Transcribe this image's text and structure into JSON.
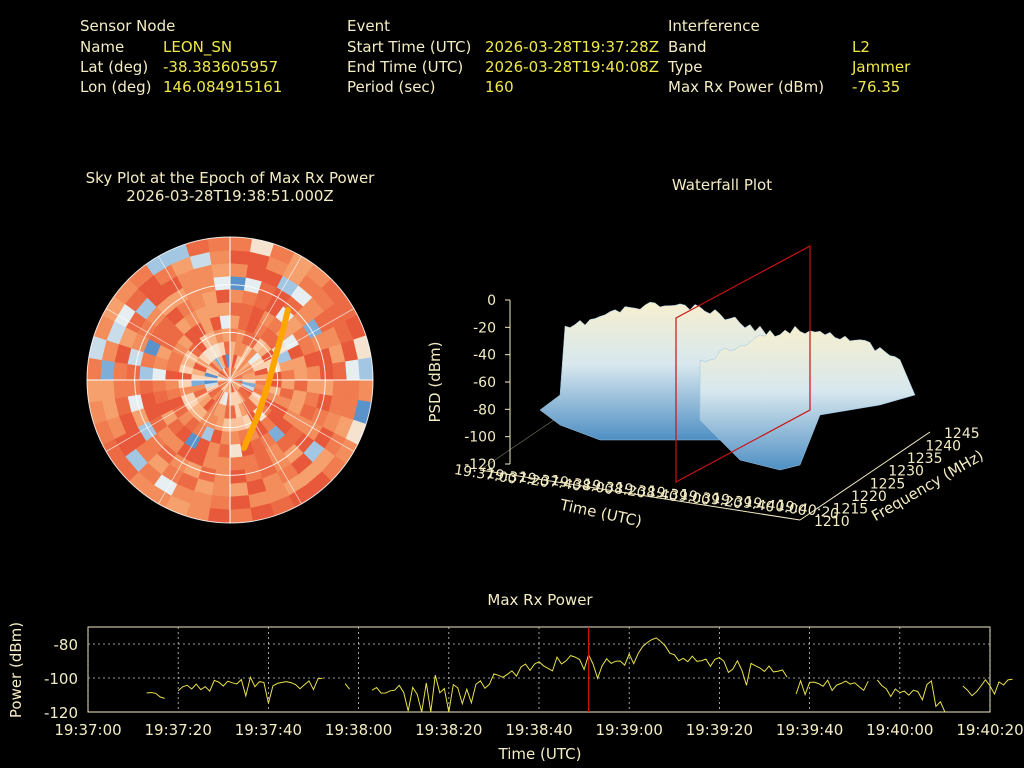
{
  "header": {
    "sensor": {
      "title": "Sensor Node",
      "rows": [
        {
          "label": "Name",
          "value": "LEON_SN"
        },
        {
          "label": "Lat (deg)",
          "value": "-38.383605957"
        },
        {
          "label": "Lon (deg)",
          "value": "146.084915161"
        }
      ]
    },
    "event": {
      "title": "Event",
      "rows": [
        {
          "label": "Start Time (UTC)",
          "value": "2026-03-28T19:37:28Z"
        },
        {
          "label": "End Time (UTC)",
          "value": "2026-03-28T19:40:08Z"
        },
        {
          "label": "Period (sec)",
          "value": "160"
        }
      ]
    },
    "interference": {
      "title": "Interference",
      "rows": [
        {
          "label": "Band",
          "value": "L2"
        },
        {
          "label": "Type",
          "value": "Jammer"
        },
        {
          "label": "Max Rx Power (dBm)",
          "value": "-76.35"
        }
      ]
    }
  },
  "colors": {
    "label": "#f4ecc4",
    "value": "#f0e84a",
    "line": "#e8e04a",
    "marker": "#cc1111",
    "track": "#ffa500"
  },
  "chart_data": [
    {
      "type": "heatmap",
      "title": "Sky Plot at the Epoch of Max Rx Power",
      "subtitle": "2026-03-28T19:38:51.000Z",
      "projection": "polar",
      "grid": true
    },
    {
      "type": "area",
      "title": "Waterfall Plot",
      "zlabel": "PSD (dBm)",
      "xlabel": "Time (UTC)",
      "ylabel": "Frequency (MHz)",
      "z_ticks": [
        "0",
        "-20",
        "-40",
        "-60",
        "-80",
        "-100",
        "-120"
      ],
      "time_ticks": [
        "19:37:00",
        "19:37:20",
        "19:37:40",
        "19:38:00",
        "19:38:20",
        "19:38:40",
        "19:39:00",
        "19:39:20",
        "19:39:40",
        "19:40:00",
        "19:40:20"
      ],
      "freq_ticks": [
        "1210",
        "1215",
        "1220",
        "1225",
        "1230",
        "1235",
        "1240",
        "1245"
      ],
      "marker_time": "19:38:51"
    },
    {
      "type": "line",
      "title": "Max Rx Power",
      "xlabel": "Time (UTC)",
      "ylabel": "Power (dBm)",
      "x_ticks": [
        "19:37:00",
        "19:37:20",
        "19:37:40",
        "19:38:00",
        "19:38:20",
        "19:38:40",
        "19:39:00",
        "19:39:20",
        "19:39:40",
        "19:40:00",
        "19:40:20"
      ],
      "y_ticks": [
        "-80",
        "-100",
        "-120"
      ],
      "ylim": [
        -120,
        -80
      ],
      "marker_time": "19:38:51",
      "marker_value": -76.35,
      "grid": true,
      "series": [
        {
          "segments": [
            {
              "t0": 13,
              "dt": 1,
              "y": [
                -108.8,
                -108.5,
                -109,
                -111.2,
                -112
              ]
            },
            {
              "t0": 20,
              "dt": 1,
              "y": [
                -107.5,
                -105.2,
                -104.3,
                -106.5,
                -103.6,
                -106.8,
                -105.1,
                -107.7,
                -101.4,
                -102.4,
                -104.7,
                -101.9,
                -102.8,
                -103.5,
                -100.9,
                -110.5,
                -99.6,
                -105.1,
                -102.2,
                -102.6,
                -114.9,
                -104.7,
                -103.2,
                -102.6,
                -102.1,
                -102.7,
                -103.8,
                -106.3,
                -104,
                -101.7,
                -106.8,
                -100.4,
                -100.1
              ]
            },
            {
              "t0": 57,
              "dt": 1,
              "y": [
                -103.3,
                -106.6
              ]
            },
            {
              "t0": 63,
              "dt": 1,
              "y": [
                -107.2,
                -105.6,
                -108.9,
                -108.8,
                -107.5,
                -107.2,
                -104.3,
                -108.5,
                -119.4,
                -105.5,
                -109.6,
                -124.3,
                -102.9,
                -123.8,
                -98.3,
                -108.7,
                -106.2,
                -130.1,
                -103.9,
                -105.8,
                -115.1,
                -106.6,
                -114.6,
                -103.7,
                -101.7,
                -106,
                -103.7,
                -97.6,
                -98.4,
                -99.6,
                -97.8,
                -95.8,
                -98.9,
                -93.5,
                -91.8,
                -95.5,
                -91.8,
                -90.4,
                -92.8,
                -94.3,
                -95.8,
                -87.7,
                -91.7,
                -89.9,
                -86.8,
                -87.7,
                -89.1,
                -95,
                -86.3,
                -91.8,
                -100.2,
                -92.8,
                -88.7,
                -91.4,
                -90.1,
                -90,
                -92.4,
                -85.9,
                -91.6,
                -85.6,
                -81.5,
                -79.2,
                -77.4,
                -76.4,
                -78.5,
                -81.2,
                -85.4,
                -86.3,
                -89.8,
                -88.4,
                -90.4,
                -87.2,
                -90.2,
                -89.8,
                -88.9,
                -93.1,
                -89,
                -88,
                -90.2,
                -96.7,
                -94.7,
                -89.8,
                -95.6,
                -104.3,
                -91.4,
                -92.8,
                -94.1,
                -96.1,
                -93,
                -96.4,
                -96,
                -95.3,
                -99.5
              ]
            },
            {
              "t0": 157,
              "dt": 1,
              "y": [
                -109.4,
                -101.6,
                -109.7,
                -102.6,
                -102.4,
                -103.3,
                -104.9,
                -101.3,
                -107.3,
                -104.2,
                -103.2,
                -101.8,
                -103.6,
                -102.8,
                -105.2,
                -107.3,
                -101.9
              ]
            },
            {
              "t0": 175,
              "dt": 1,
              "y": [
                -101.1,
                -104.5,
                -106.4,
                -110.9,
                -106.5,
                -108.6,
                -107.7,
                -110.1,
                -107.2,
                -108,
                -112.8,
                -103.9,
                -101.7,
                -116.7,
                -114,
                -124.2
              ]
            },
            {
              "t0": 194,
              "dt": 1,
              "y": [
                -104.7,
                -107.2,
                -110.4,
                -108.1,
                -104.7,
                -101,
                -104.6,
                -109.5,
                -102.3,
                -104.1,
                -101.1,
                -100.7
              ]
            }
          ]
        }
      ]
    }
  ]
}
